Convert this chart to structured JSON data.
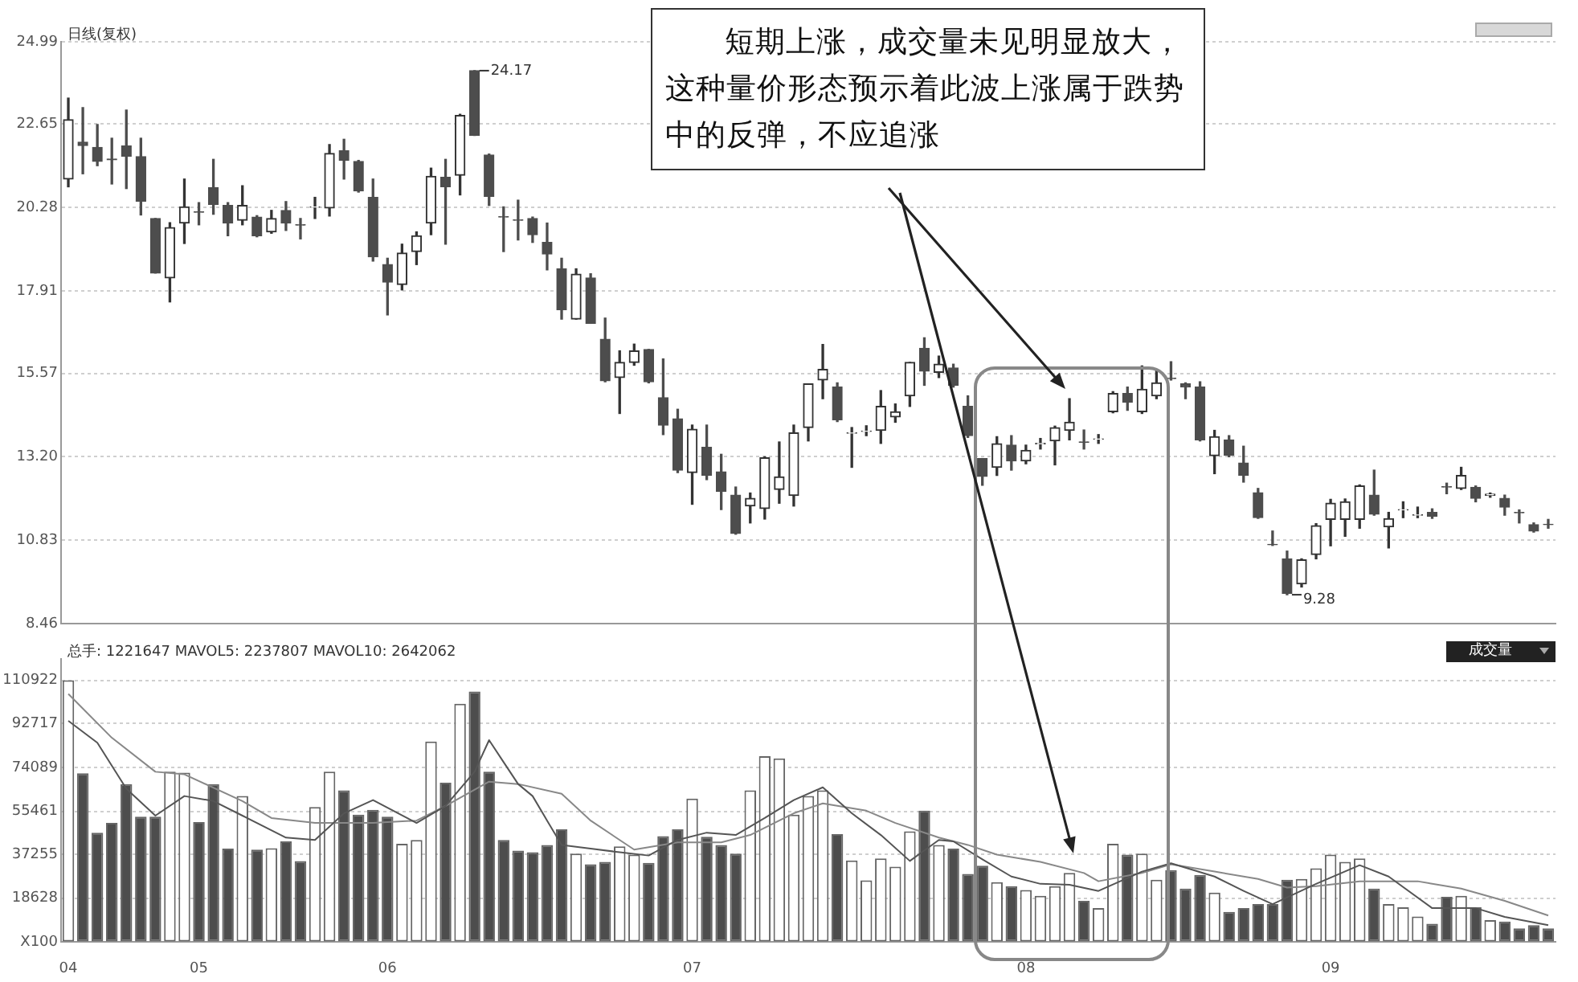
{
  "chart_data": [
    {
      "type": "candlestick",
      "title": "日线(复权)",
      "categories": [
        "04",
        null,
        null,
        null,
        null,
        null,
        null,
        null,
        null,
        "05",
        null,
        null,
        null,
        null,
        null,
        null,
        null,
        null,
        null,
        null,
        null,
        null,
        "06",
        null,
        null,
        null,
        null,
        null,
        null,
        null,
        null,
        null,
        null,
        null,
        null,
        null,
        null,
        null,
        null,
        null,
        null,
        null,
        null,
        "07",
        null,
        null,
        null,
        null,
        null,
        null,
        null,
        null,
        null,
        null,
        null,
        null,
        null,
        null,
        null,
        null,
        null,
        null,
        null,
        null,
        null,
        null,
        "08",
        null,
        null,
        null,
        null,
        null,
        null,
        null,
        null,
        null,
        null,
        null,
        null,
        null,
        null,
        null,
        null,
        null,
        null,
        null,
        null,
        "09",
        null,
        null,
        null,
        null,
        null,
        null,
        null,
        null,
        null,
        null,
        null,
        null,
        null,
        null,
        null
      ],
      "ohlc": [
        [
          21.09,
          23.39,
          20.87,
          22.78
        ],
        [
          22.14,
          23.12,
          21.24,
          22.04
        ],
        [
          21.99,
          22.64,
          21.47,
          21.59
        ],
        [
          21.66,
          22.25,
          20.95,
          21.64
        ],
        [
          22.03,
          23.05,
          20.82,
          21.74
        ],
        [
          21.73,
          22.25,
          20.07,
          20.46
        ],
        [
          19.97,
          19.97,
          18.42,
          18.42
        ],
        [
          18.28,
          19.85,
          17.6,
          19.71
        ],
        [
          19.84,
          21.09,
          19.26,
          20.3
        ],
        [
          20.16,
          20.42,
          19.79,
          20.15
        ],
        [
          20.85,
          21.65,
          20.09,
          20.37
        ],
        [
          20.34,
          20.42,
          19.48,
          19.84
        ],
        [
          19.92,
          20.9,
          19.79,
          20.34
        ],
        [
          20.01,
          20.05,
          19.45,
          19.48
        ],
        [
          19.59,
          20.2,
          19.55,
          19.97
        ],
        [
          20.2,
          20.45,
          19.63,
          19.84
        ],
        [
          19.79,
          19.97,
          19.39,
          19.78
        ],
        [
          20.29,
          20.57,
          19.97,
          20.3
        ],
        [
          20.27,
          22.07,
          20.04,
          21.82
        ],
        [
          21.89,
          22.22,
          21.09,
          21.62
        ],
        [
          21.59,
          21.62,
          20.72,
          20.75
        ],
        [
          20.57,
          21.09,
          18.76,
          18.88
        ],
        [
          18.66,
          18.84,
          17.23,
          18.16
        ],
        [
          18.09,
          19.24,
          17.94,
          18.99
        ],
        [
          19.03,
          19.59,
          18.66,
          19.48
        ],
        [
          19.84,
          21.4,
          19.51,
          21.17
        ],
        [
          21.14,
          21.65,
          19.24,
          20.87
        ],
        [
          21.2,
          22.93,
          20.64,
          22.9
        ],
        [
          24.17,
          24.17,
          22.33,
          22.33
        ],
        [
          21.77,
          21.8,
          20.34,
          20.6
        ],
        [
          20.02,
          20.3,
          19.03,
          20.01
        ],
        [
          19.93,
          20.49,
          19.36,
          19.92
        ],
        [
          19.97,
          20.01,
          19.29,
          19.51
        ],
        [
          19.29,
          19.84,
          18.51,
          18.96
        ],
        [
          18.54,
          18.84,
          17.11,
          17.38
        ],
        [
          17.11,
          18.54,
          17.11,
          18.39
        ],
        [
          18.28,
          18.4,
          16.99,
          16.99
        ],
        [
          16.54,
          17.14,
          15.33,
          15.36
        ],
        [
          15.45,
          16.21,
          14.43,
          15.88
        ],
        [
          15.88,
          16.4,
          15.8,
          16.21
        ],
        [
          16.25,
          16.25,
          15.3,
          15.33
        ],
        [
          14.88,
          15.98,
          13.83,
          14.1
        ],
        [
          14.28,
          14.55,
          12.75,
          12.82
        ],
        [
          12.75,
          14.1,
          11.85,
          13.98
        ],
        [
          13.47,
          14.1,
          12.55,
          12.67
        ],
        [
          12.77,
          13.27,
          11.7,
          12.22
        ],
        [
          12.11,
          12.34,
          11.0,
          11.02
        ],
        [
          11.8,
          12.17,
          11.32,
          12.02
        ],
        [
          11.73,
          13.2,
          11.43,
          13.17
        ],
        [
          12.27,
          13.62,
          11.88,
          12.63
        ],
        [
          12.1,
          14.1,
          11.8,
          13.88
        ],
        [
          14.03,
          15.27,
          13.65,
          15.27
        ],
        [
          15.38,
          16.39,
          14.85,
          15.68
        ],
        [
          15.18,
          15.3,
          14.2,
          14.25
        ],
        [
          13.87,
          14.03,
          12.9,
          13.88
        ],
        [
          13.92,
          14.08,
          13.8,
          13.93
        ],
        [
          13.95,
          15.08,
          13.58,
          14.63
        ],
        [
          14.33,
          14.7,
          14.18,
          14.48
        ],
        [
          14.93,
          15.88,
          14.63,
          15.88
        ],
        [
          16.28,
          16.58,
          15.23,
          15.63
        ],
        [
          15.6,
          16.06,
          15.45,
          15.83
        ],
        [
          15.72,
          15.83,
          15.18,
          15.23
        ],
        [
          14.63,
          14.93,
          13.75,
          13.8
        ],
        [
          13.15,
          13.15,
          12.39,
          12.64
        ],
        [
          12.9,
          13.77,
          12.67,
          13.57
        ],
        [
          13.53,
          13.8,
          12.82,
          13.08
        ],
        [
          13.08,
          13.53,
          13.0,
          13.38
        ],
        [
          13.56,
          13.72,
          13.42,
          13.58
        ],
        [
          13.65,
          14.07,
          12.97,
          14.03
        ],
        [
          13.95,
          14.85,
          13.68,
          14.18
        ],
        [
          13.62,
          13.96,
          13.42,
          13.61
        ],
        [
          13.7,
          13.83,
          13.58,
          13.71
        ],
        [
          14.48,
          15.05,
          14.45,
          15.0
        ],
        [
          15.0,
          15.18,
          14.52,
          14.75
        ],
        [
          14.48,
          15.78,
          14.43,
          15.12
        ],
        [
          14.93,
          15.68,
          14.85,
          15.3
        ],
        [
          15.43,
          15.9,
          15.38,
          15.42
        ],
        [
          15.27,
          15.3,
          14.85,
          15.18
        ],
        [
          15.18,
          15.33,
          13.65,
          13.68
        ],
        [
          13.23,
          13.95,
          12.72,
          13.77
        ],
        [
          13.68,
          13.8,
          13.2,
          13.24
        ],
        [
          13.02,
          13.5,
          12.48,
          12.67
        ],
        [
          12.18,
          12.3,
          11.45,
          11.47
        ],
        [
          10.71,
          11.09,
          10.68,
          10.7
        ],
        [
          10.3,
          10.52,
          9.28,
          9.32
        ],
        [
          9.59,
          10.3,
          9.5,
          10.27
        ],
        [
          10.42,
          11.3,
          10.3,
          11.24
        ],
        [
          11.42,
          11.99,
          10.67,
          11.88
        ],
        [
          11.42,
          12.0,
          10.94,
          11.92
        ],
        [
          11.42,
          12.4,
          11.17,
          12.37
        ],
        [
          12.11,
          12.82,
          11.54,
          11.57
        ],
        [
          11.21,
          11.62,
          10.61,
          11.44
        ],
        [
          11.69,
          11.92,
          11.47,
          11.7
        ],
        [
          11.54,
          11.77,
          11.47,
          11.55
        ],
        [
          11.62,
          11.72,
          11.45,
          11.51
        ],
        [
          12.35,
          12.45,
          12.15,
          12.34
        ],
        [
          12.3,
          12.9,
          12.27,
          12.67
        ],
        [
          12.33,
          12.37,
          11.92,
          12.02
        ],
        [
          12.1,
          12.17,
          12.05,
          12.14
        ],
        [
          12.02,
          12.11,
          11.54,
          11.77
        ],
        [
          11.62,
          11.69,
          11.32,
          11.61
        ],
        [
          11.27,
          11.32,
          11.06,
          11.09
        ],
        [
          11.28,
          11.42,
          11.17,
          11.27
        ]
      ],
      "ylim": [
        8.46,
        24.99
      ],
      "yticks": [
        8.46,
        10.83,
        {
          "value": 13.2,
          "label": "13.20"
        },
        15.57,
        17.91,
        20.28,
        22.65,
        24.99
      ],
      "grid": "y",
      "tick_labels": "y",
      "annotations": [
        "短期上涨，成交量未见明显放大，这种量价形态预示着此波上涨属于跌势中的反弹，不应追涨",
        "24.17",
        "9.28"
      ]
    },
    {
      "type": "bar",
      "title": "总手: 1221647 MAVOL5: 2237807 MAVOL10: 2642062",
      "categories": [
        "04",
        null,
        null,
        null,
        null,
        null,
        null,
        null,
        null,
        "05",
        null,
        null,
        null,
        null,
        null,
        null,
        null,
        null,
        null,
        null,
        null,
        null,
        "06",
        null,
        null,
        null,
        null,
        null,
        null,
        null,
        null,
        null,
        null,
        null,
        null,
        null,
        null,
        null,
        null,
        null,
        null,
        null,
        null,
        "07",
        null,
        null,
        null,
        null,
        null,
        null,
        null,
        null,
        null,
        null,
        null,
        null,
        null,
        null,
        null,
        null,
        null,
        null,
        null,
        null,
        null,
        null,
        "08",
        null,
        null,
        null,
        null,
        null,
        null,
        null,
        null,
        null,
        null,
        null,
        null,
        null,
        null,
        null,
        null,
        null,
        null,
        null,
        null,
        "09",
        null,
        null,
        null,
        null,
        null,
        null,
        null,
        null,
        null,
        null,
        null,
        null,
        null,
        null,
        null
      ],
      "series": [
        {
          "type": "bar",
          "values": [
            111000,
            71600,
            46400,
            50500,
            67000,
            53200,
            53200,
            72200,
            71800,
            50900,
            67000,
            39600,
            61900,
            39200,
            39800,
            42700,
            34400,
            57300,
            72200,
            64300,
            54000,
            56100,
            53200,
            41700,
            43300,
            85000,
            67600,
            101000,
            106200,
            72200,
            43300,
            38800,
            38100,
            41200,
            47800,
            37500,
            33000,
            34000,
            40600,
            37100,
            33600,
            44900,
            47800,
            60800,
            44700,
            41200,
            37500,
            64300,
            78800,
            77900,
            54000,
            61900,
            64300,
            45800,
            34600,
            26200,
            35500,
            32000,
            47000,
            55700,
            41200,
            39600,
            28900,
            32400,
            25400,
            23700,
            22100,
            19600,
            23700,
            29300,
            17500,
            14400,
            41700,
            37100,
            37500,
            26400,
            30500,
            22700,
            28500,
            21000,
            12800,
            14400,
            16100,
            16100,
            26400,
            26800,
            31300,
            37100,
            34000,
            35500,
            22700,
            16100,
            14800,
            10900,
            7800,
            19200,
            19600,
            14800,
            9300,
            8700,
            5800,
            7200,
            5800
          ],
          "colors": [
            "#ffffff",
            "#4d4d4d",
            "#4d4d4d",
            "#4d4d4d",
            "#4d4d4d",
            "#4d4d4d",
            "#4d4d4d",
            "#ffffff",
            "#ffffff",
            "#4d4d4d",
            "#4d4d4d",
            "#4d4d4d",
            "#ffffff",
            "#4d4d4d",
            "#ffffff",
            "#4d4d4d",
            "#4d4d4d",
            "#ffffff",
            "#ffffff",
            "#4d4d4d",
            "#4d4d4d",
            "#4d4d4d",
            "#4d4d4d",
            "#ffffff",
            "#ffffff",
            "#ffffff",
            "#4d4d4d",
            "#ffffff",
            "#4d4d4d",
            "#4d4d4d",
            "#4d4d4d",
            "#4d4d4d",
            "#4d4d4d",
            "#4d4d4d",
            "#4d4d4d",
            "#ffffff",
            "#4d4d4d",
            "#4d4d4d",
            "#ffffff",
            "#ffffff",
            "#4d4d4d",
            "#4d4d4d",
            "#4d4d4d",
            "#ffffff",
            "#4d4d4d",
            "#4d4d4d",
            "#4d4d4d",
            "#ffffff",
            "#ffffff",
            "#ffffff",
            "#ffffff",
            "#ffffff",
            "#ffffff",
            "#4d4d4d",
            "#ffffff",
            "#ffffff",
            "#ffffff",
            "#ffffff",
            "#ffffff",
            "#4d4d4d",
            "#ffffff",
            "#4d4d4d",
            "#4d4d4d",
            "#4d4d4d",
            "#ffffff",
            "#4d4d4d",
            "#ffffff",
            "#ffffff",
            "#ffffff",
            "#ffffff",
            "#4d4d4d",
            "#ffffff",
            "#ffffff",
            "#4d4d4d",
            "#ffffff",
            "#ffffff",
            "#4d4d4d",
            "#4d4d4d",
            "#4d4d4d",
            "#ffffff",
            "#4d4d4d",
            "#4d4d4d",
            "#4d4d4d",
            "#4d4d4d",
            "#4d4d4d",
            "#ffffff",
            "#ffffff",
            "#ffffff",
            "#ffffff",
            "#ffffff",
            "#4d4d4d",
            "#ffffff",
            "#ffffff",
            "#ffffff",
            "#4d4d4d",
            "#4d4d4d",
            "#ffffff",
            "#4d4d4d",
            "#ffffff",
            "#4d4d4d",
            "#4d4d4d",
            "#4d4d4d",
            "#4d4d4d"
          ]
        },
        {
          "type": "line",
          "color": "#555555",
          "values": [
            93800,
            null,
            84500,
            null,
            65000,
            null,
            53600,
            null,
            61900,
            null,
            59800,
            null,
            53600,
            null,
            null,
            44300,
            null,
            43300,
            null,
            54600,
            null,
            60200,
            null,
            null,
            50500,
            null,
            57700,
            null,
            72200,
            85600,
            76300,
            67000,
            61900,
            51500,
            41200,
            null,
            39600,
            null,
            38100,
            null,
            36700,
            null,
            43300,
            null,
            46400,
            null,
            45400,
            null,
            52600,
            null,
            60200,
            null,
            65600,
            null,
            54600,
            null,
            45400,
            null,
            34400,
            null,
            43300,
            42700,
            null,
            35100,
            null,
            27800,
            null,
            24700,
            null,
            24300,
            null,
            21700,
            null,
            null,
            29900,
            null,
            33400,
            null,
            null,
            27800,
            null,
            21700,
            null,
            16100,
            null,
            null,
            24700,
            null,
            null,
            32600,
            null,
            27800,
            null,
            null,
            14400,
            null,
            null,
            14400,
            null,
            10700,
            null,
            null,
            7200
          ]
        },
        {
          "type": "line",
          "color": "#888888",
          "values": [
            105200,
            null,
            null,
            86600,
            null,
            null,
            72200,
            null,
            71100,
            null,
            null,
            null,
            59800,
            null,
            52600,
            null,
            null,
            50500,
            null,
            null,
            null,
            50500,
            null,
            null,
            51500,
            null,
            57700,
            null,
            null,
            68000,
            null,
            67000,
            null,
            null,
            62900,
            null,
            51500,
            null,
            null,
            39200,
            null,
            null,
            42300,
            null,
            null,
            42300,
            null,
            45400,
            null,
            null,
            54600,
            null,
            58800,
            null,
            null,
            55700,
            null,
            50500,
            null,
            null,
            44300,
            null,
            41200,
            null,
            37100,
            null,
            null,
            34000,
            null,
            null,
            29300,
            25800,
            null,
            null,
            29300,
            null,
            33000,
            null,
            null,
            29900,
            null,
            null,
            26800,
            null,
            23100,
            null,
            23700,
            null,
            null,
            25800,
            null,
            null,
            null,
            25800,
            null,
            null,
            22700,
            null,
            null,
            17500,
            null,
            null,
            11300
          ]
        }
      ],
      "ylim": [
        0,
        120000
      ],
      "yticks": [
        {
          "value": 0,
          "label": "X100"
        },
        18628,
        37255,
        55461,
        74089,
        92717,
        110922
      ],
      "grid": "y",
      "marker": "none",
      "annotations": [
        "成交量"
      ]
    }
  ]
}
